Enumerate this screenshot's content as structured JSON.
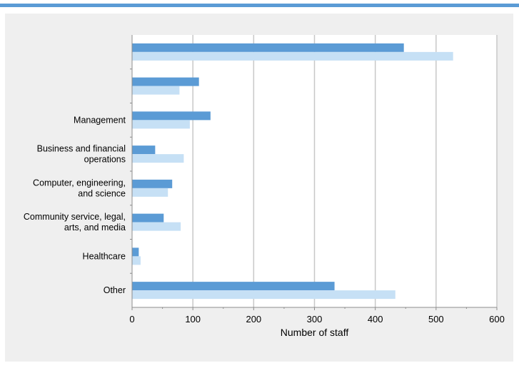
{
  "colors": {
    "top_rule": "#5b9bd5",
    "panel_background": "#efefef",
    "plot_background": "#ffffff",
    "gridline": "#c8c8c8",
    "axis": "#8c8c8c",
    "series_1": "#5b9bd5",
    "series_2": "#c6e0f5",
    "text": "#000000"
  },
  "chart_data": {
    "type": "bar",
    "orientation": "horizontal",
    "categories": [
      "",
      "",
      "Management",
      "Business and financial operations",
      "Computer, engineering, and science",
      "Community service, legal, arts, and media",
      "Healthcare",
      "Other"
    ],
    "category_label_lines": [
      [],
      [],
      [
        "Management"
      ],
      [
        "Business and financial",
        "operations"
      ],
      [
        "Computer, engineering,",
        "and science"
      ],
      [
        "Community service, legal,",
        "arts, and media"
      ],
      [
        "Healthcare"
      ],
      [
        "Other"
      ]
    ],
    "series": [
      {
        "values": [
          447,
          110,
          129,
          38,
          66,
          52,
          11,
          333
        ]
      },
      {
        "values": [
          528,
          78,
          95,
          85,
          59,
          80,
          14,
          433
        ]
      }
    ],
    "xlabel": "Number of staff",
    "ylabel": "",
    "xlim": [
      0,
      600
    ],
    "xticks": [
      0,
      100,
      200,
      300,
      400,
      500,
      600
    ],
    "grid": "vertical",
    "legend": "none"
  }
}
